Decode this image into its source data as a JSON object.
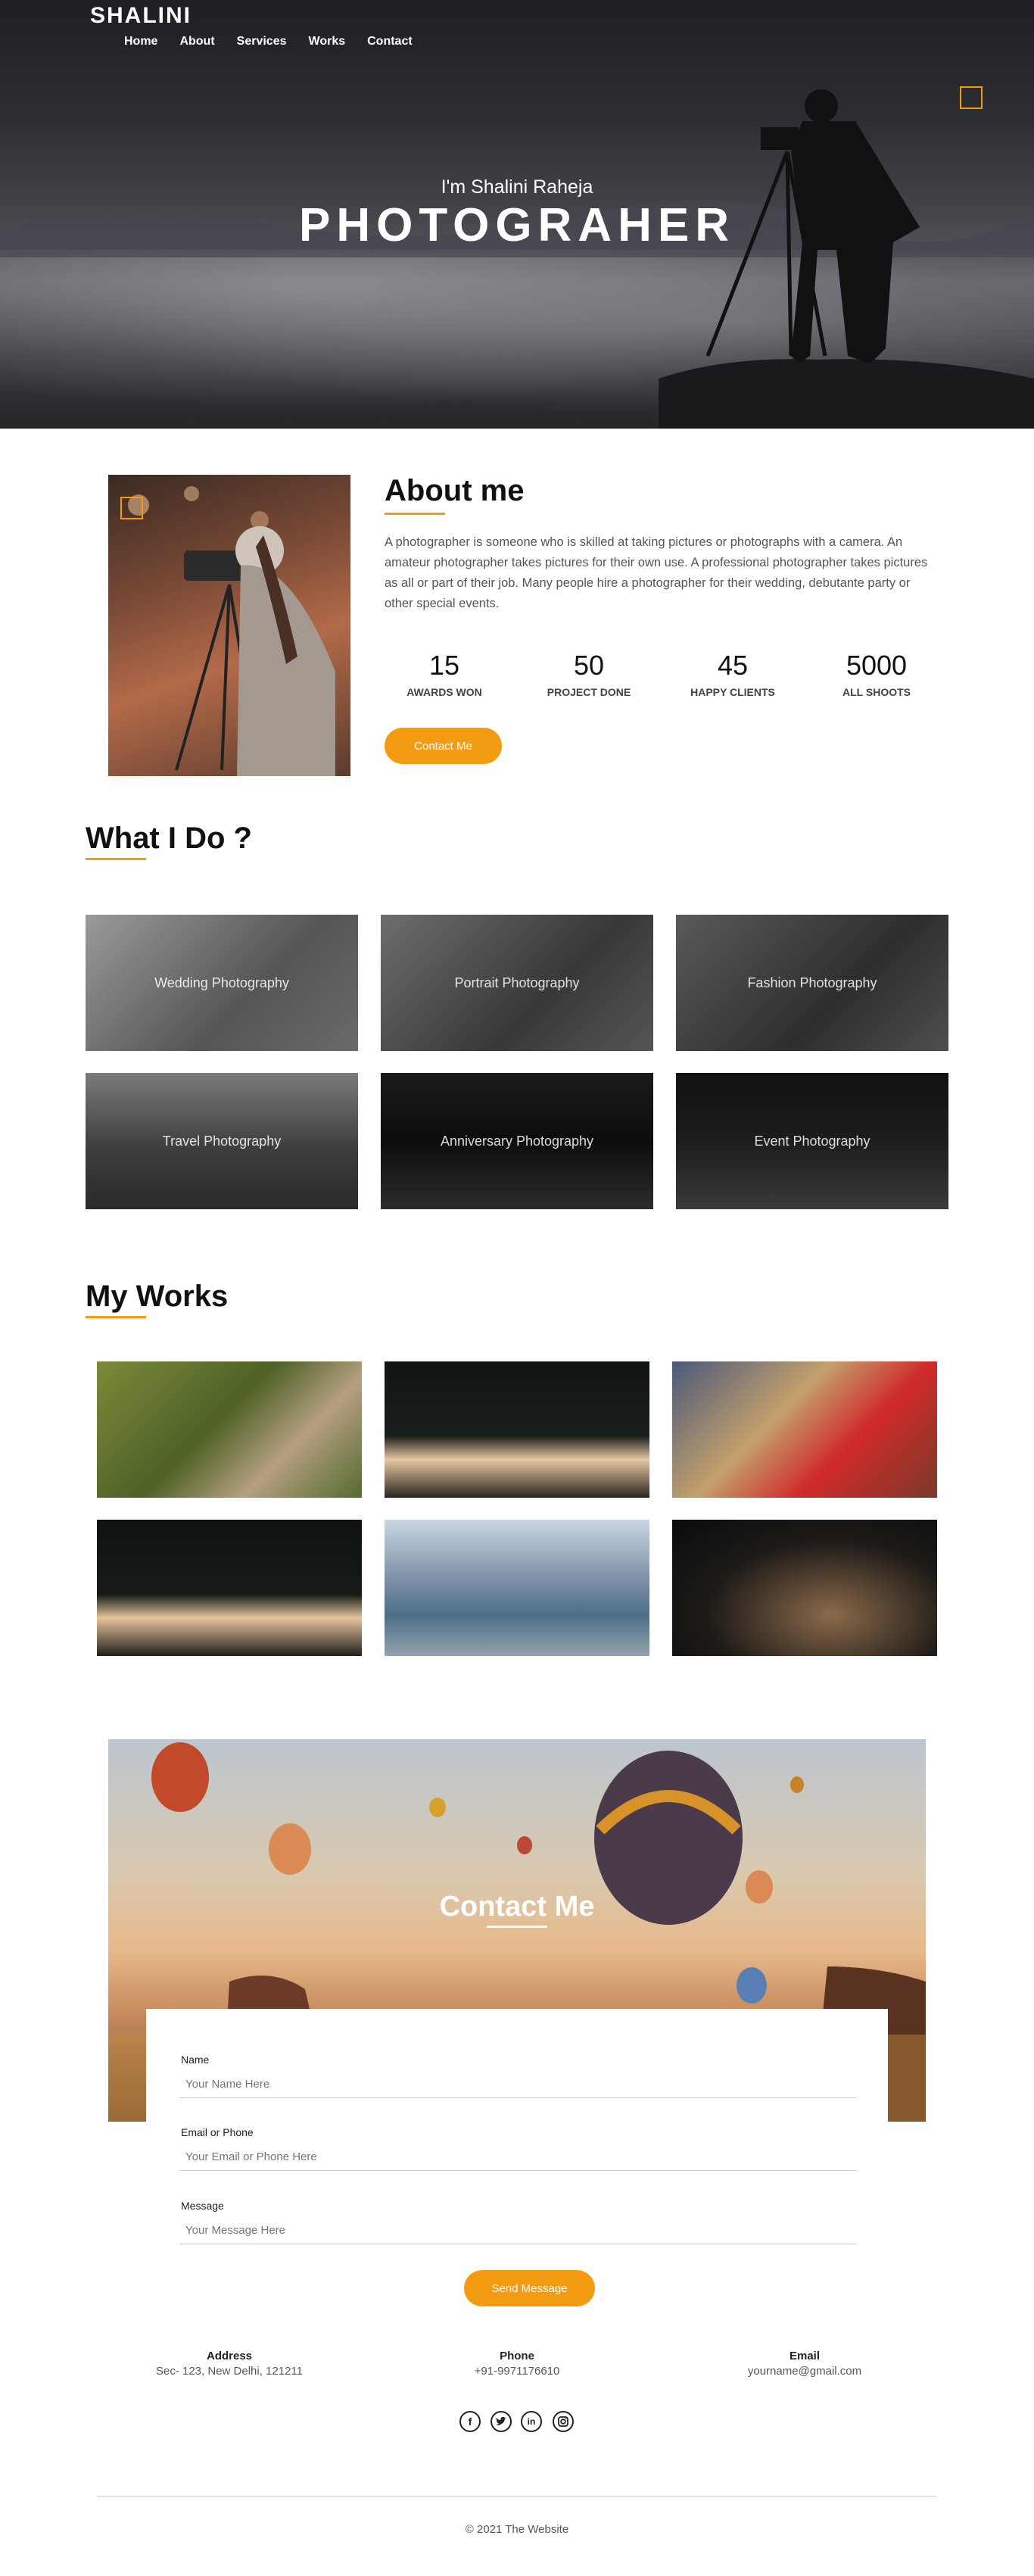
{
  "header": {
    "brand": "SHALINI",
    "nav": [
      "Home",
      "About",
      "Services",
      "Works",
      "Contact"
    ]
  },
  "hero": {
    "subtitle": "I'm Shalini Raheja",
    "title": "PHOTOGRAHER"
  },
  "about": {
    "title": "About me",
    "text": "A photographer is someone who is skilled at taking pictures or photographs with a camera. An amateur photographer takes pictures for their own use. A professional photographer takes pictures as all or part of their job. Many people hire a photographer for their wedding, debutante party or other special events.",
    "stats": [
      {
        "num": "15",
        "label": "AWARDS WON"
      },
      {
        "num": "50",
        "label": "PROJECT DONE"
      },
      {
        "num": "45",
        "label": "HAPPY CLIENTS"
      },
      {
        "num": "5000",
        "label": "ALL SHOOTS"
      }
    ],
    "button": "Contact Me"
  },
  "services": {
    "title": "What I Do ?",
    "items": [
      "Wedding Photography",
      "Portrait Photography",
      "Fashion Photography",
      "Travel Photography",
      "Anniversary Photography",
      "Event Photography"
    ]
  },
  "works": {
    "title": "My Works"
  },
  "contact": {
    "title": "Contact Me",
    "fields": [
      {
        "label": "Name",
        "placeholder": "Your Name Here"
      },
      {
        "label": "Email or Phone",
        "placeholder": "Your Email or Phone Here"
      },
      {
        "label": "Message",
        "placeholder": "Your Message Here"
      }
    ],
    "button": "Send Message"
  },
  "info": [
    {
      "heading": "Address",
      "value": "Sec- 123, New Delhi, 121211"
    },
    {
      "heading": "Phone",
      "value": "+91-9971176610"
    },
    {
      "heading": "Email",
      "value": "yourname@gmail.com"
    }
  ],
  "social": [
    "facebook-icon",
    "twitter-icon",
    "linkedin-icon",
    "instagram-icon"
  ],
  "footer": {
    "copyright": "© 2021 The Website"
  },
  "colors": {
    "accent": "#f39c12"
  }
}
